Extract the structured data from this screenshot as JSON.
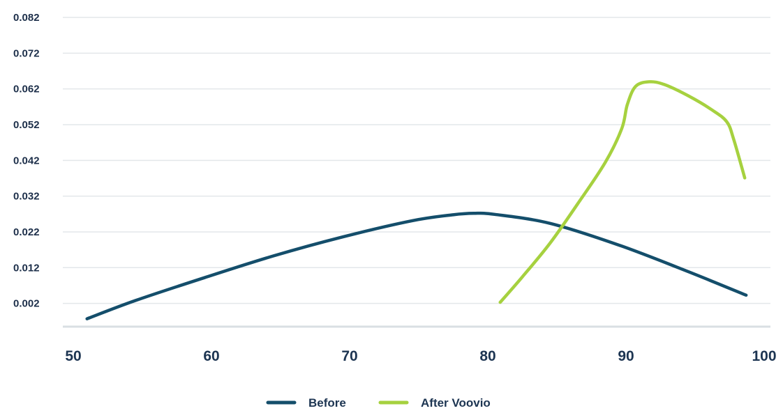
{
  "chart_data": {
    "type": "line",
    "title": "",
    "xlabel": "",
    "ylabel": "",
    "xlim": [
      50,
      100
    ],
    "ylim": [
      -0.0045,
      0.082
    ],
    "x_ticks": [
      "50",
      "60",
      "70",
      "80",
      "90",
      "100"
    ],
    "y_ticks": [
      "0.082",
      "0.072",
      "0.062",
      "0.052",
      "0.042",
      "0.032",
      "0.022",
      "0.012",
      "0.002"
    ],
    "grid": "horizontal",
    "legend_position": "bottom-center",
    "series": [
      {
        "name": "Before",
        "color": "#144e6b",
        "x": [
          51.5,
          55,
          60,
          65,
          70,
          75,
          78,
          79.5,
          81,
          85,
          90,
          95,
          99.2
        ],
        "y": [
          -0.0023,
          0.0028,
          0.0092,
          0.0153,
          0.0206,
          0.0251,
          0.0268,
          0.0272,
          0.0269,
          0.0244,
          0.0183,
          0.0109,
          0.0043
        ]
      },
      {
        "name": "After Voovio",
        "color": "#a6d13f",
        "x": [
          81.4,
          83,
          85,
          87,
          89,
          90.2,
          90.6,
          91.2,
          92.2,
          93.3,
          95,
          96.7,
          97.8,
          98.3,
          99.1
        ],
        "y": [
          0.0023,
          0.0094,
          0.0188,
          0.0298,
          0.0414,
          0.0509,
          0.0576,
          0.0627,
          0.064,
          0.0632,
          0.0601,
          0.0562,
          0.0528,
          0.0479,
          0.0371
        ]
      }
    ]
  }
}
